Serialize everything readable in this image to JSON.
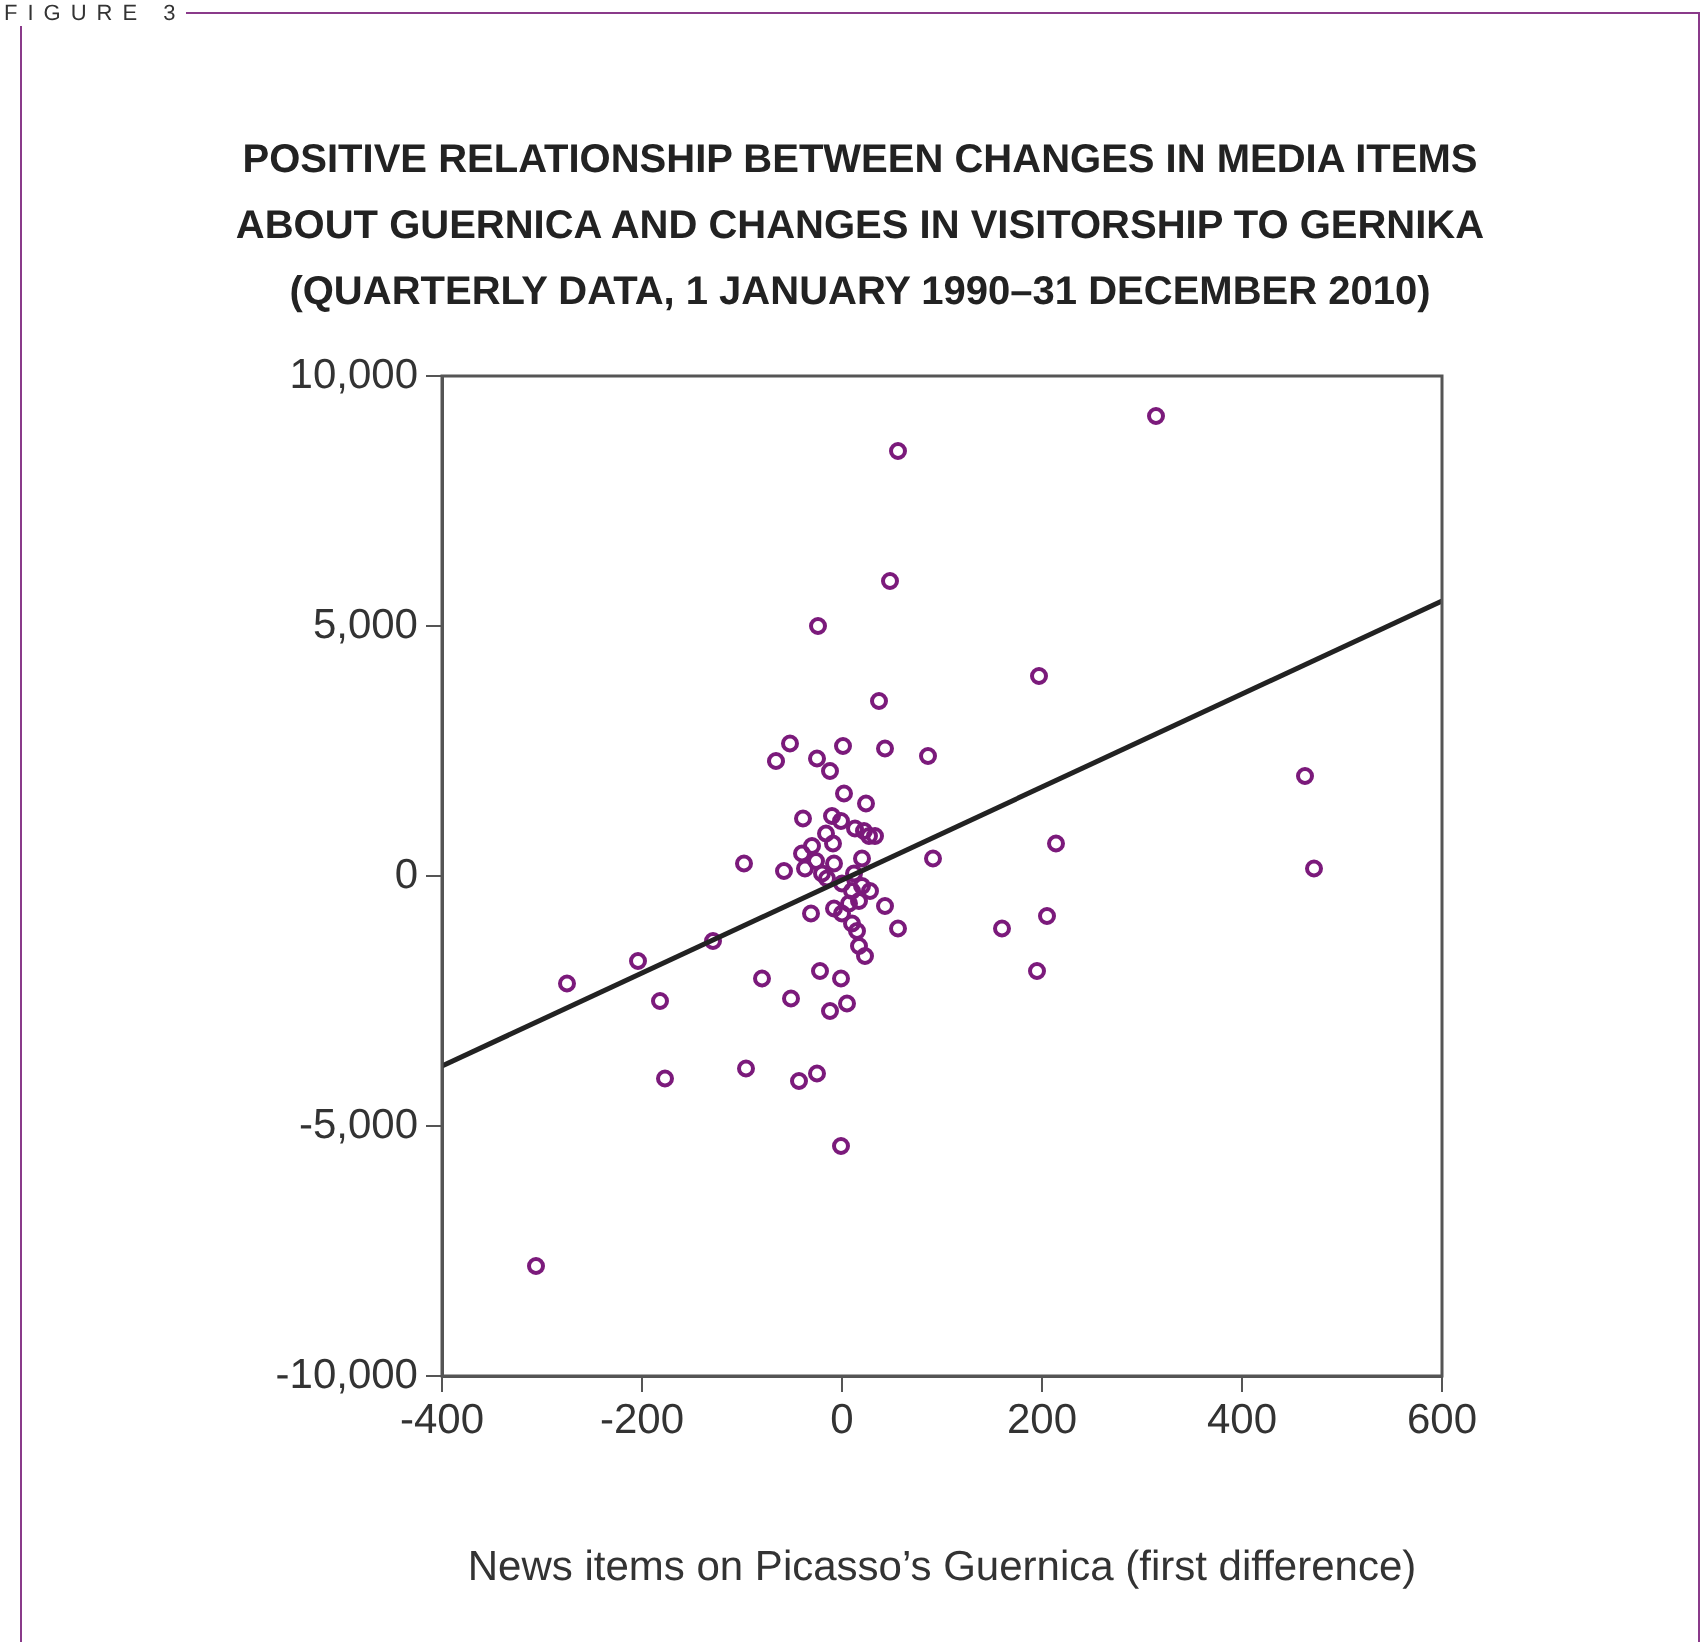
{
  "chart_data": {
    "type": "scatter",
    "title": "POSITIVE RELATIONSHIP BETWEEN CHANGES IN MEDIA ITEMS ABOUT GUERNICA AND CHANGES IN VISITORSHIP TO GERNIKA (QUARTERLY DATA, 1 JANUARY 1990–31 DECEMBER 2010)",
    "xlabel": "News items on Picasso’s Guernica (first difference)",
    "annotations": [
      "FIGURE 3"
    ],
    "xlim": [
      -400,
      600
    ],
    "xticks": [
      -400,
      -200,
      0,
      200,
      400,
      600
    ],
    "ylim": [
      -10000,
      10000
    ],
    "yticks": [
      {
        "value": -10000,
        "label": "-10,000"
      },
      {
        "value": -5000,
        "label": "-5,000"
      },
      {
        "value": 0,
        "label": "0"
      },
      {
        "value": 5000,
        "label": "5,000"
      },
      {
        "value": 10000,
        "label": "10,000"
      }
    ],
    "grid": false,
    "legend": false,
    "marker": "circle",
    "series": [
      {
        "color": "#7b1a7b",
        "x": [
          314,
          56,
          48,
          -24,
          197,
          37,
          -52,
          1,
          -66,
          -25,
          -12,
          43,
          86,
          2,
          24,
          -39,
          -10,
          -1,
          -16,
          -9,
          13,
          22,
          27,
          33,
          -30,
          -40,
          -26,
          -8,
          20,
          -98,
          -58,
          -37,
          -20,
          -15,
          91,
          214,
          463,
          472,
          12,
          0,
          10,
          20,
          28,
          17,
          7,
          -8,
          0,
          43,
          -31,
          10,
          15,
          56,
          160,
          205,
          17,
          23,
          -129,
          -204,
          -275,
          -182,
          -80,
          -22,
          -1,
          -51,
          5,
          -12,
          195,
          -177,
          -96,
          -43,
          -25,
          -1,
          -306
        ],
        "values": [
          9200,
          8500,
          5900,
          5000,
          4000,
          3500,
          2650,
          2600,
          2300,
          2350,
          2100,
          2550,
          2400,
          1650,
          1450,
          1150,
          1200,
          1100,
          850,
          650,
          950,
          900,
          800,
          800,
          600,
          450,
          300,
          250,
          350,
          250,
          100,
          150,
          50,
          -50,
          350,
          650,
          2000,
          150,
          50,
          -150,
          -300,
          -200,
          -300,
          -500,
          -550,
          -650,
          -750,
          -600,
          -750,
          -950,
          -1100,
          -1050,
          -1050,
          -800,
          -1400,
          -1600,
          -1300,
          -1700,
          -2150,
          -2500,
          -2050,
          -1900,
          -2050,
          -2450,
          -2550,
          -2700,
          -1900,
          -4050,
          -3850,
          -4100,
          -3950,
          -5400,
          -7800
        ]
      },
      {
        "type": "line",
        "color": "#222222",
        "x": [
          -400,
          600
        ],
        "values": [
          -3800,
          5500
        ],
        "marker": "none",
        "line_style": "solid"
      }
    ]
  }
}
